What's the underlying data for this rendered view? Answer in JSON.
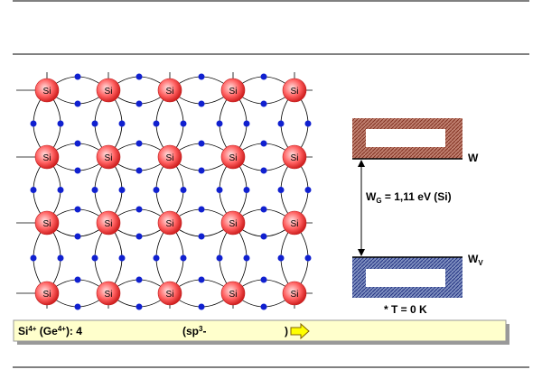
{
  "lattice": {
    "rows": [
      [
        "Si",
        "Si",
        "Si",
        "Si",
        "Si"
      ],
      [
        "Si",
        "Si",
        "Si",
        "Si",
        "Si"
      ],
      [
        "Si",
        "Si",
        "Si",
        "Si",
        "Si"
      ],
      [
        "Si",
        "Si",
        "Si",
        "Si",
        "Si"
      ]
    ]
  },
  "bands": {
    "conduction_label": "W",
    "gap_label": {
      "symbol": "W",
      "subscript": "G",
      "text": " = 1,11 eV (Si)"
    },
    "valence_label": {
      "symbol": "W",
      "subscript": "V"
    },
    "note": "* T = 0 K"
  },
  "info_bar": {
    "part1": {
      "a": "Si",
      "a_sup": "4+",
      "b": " (Ge",
      "b_sup": "4+",
      "c": "): 4"
    },
    "part2": {
      "a": "(sp",
      "a_sup": "3",
      "b": "-"
    },
    "part3": ")"
  }
}
